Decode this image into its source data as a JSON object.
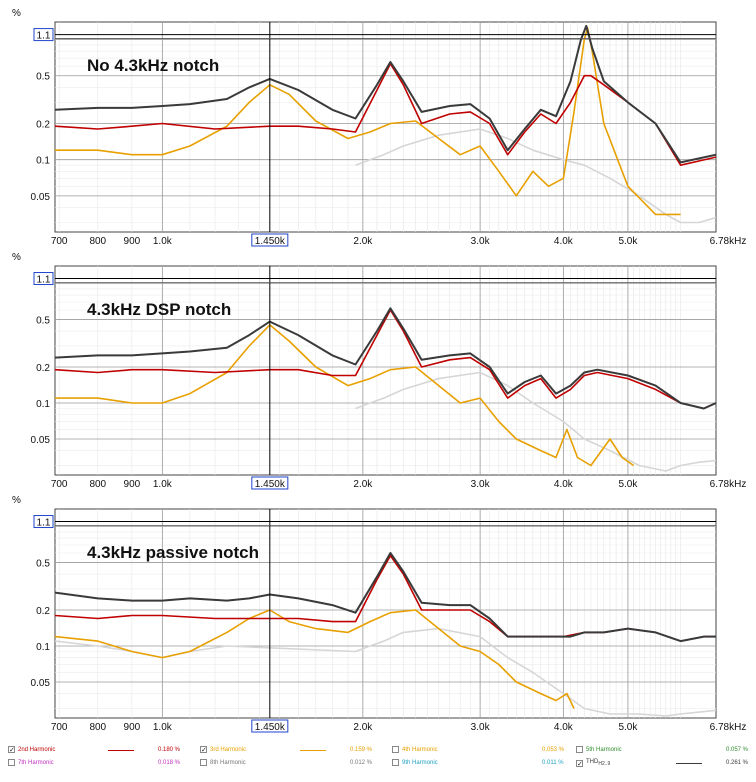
{
  "colors": {
    "thd": "#3a3a3a",
    "h2": "#c00000",
    "h3": "#e8a000",
    "h4_text": "#e8a000",
    "h5": "#2f8f2f",
    "h7": "#c030c0",
    "h9": "#20a0c0",
    "gray_curve": "#d6d6d6",
    "grid": "#9a9a9a",
    "cursor": "#000000",
    "box": "#2244cc"
  },
  "chart_data": [
    {
      "type": "line",
      "title": "No 4.3kHz notch",
      "ylabel": "%",
      "x_scale": "log",
      "y_scale": "log",
      "xlim": [
        690,
        6780
      ],
      "ylim": [
        0.025,
        1.4
      ],
      "x_tick_labels": [
        "700",
        "800",
        "900",
        "1.0k",
        "1.450k",
        "2.0k",
        "3.0k",
        "4.0k",
        "5.0k",
        "6.78kHz"
      ],
      "y_tick_labels": [
        "1.1",
        "0.5",
        "0.2",
        "0.1",
        "0.05"
      ],
      "cursor_x": 1450,
      "cursor_y": 1.1,
      "series": [
        {
          "name": "THD",
          "x": [
            690,
            800,
            900,
            1000,
            1100,
            1250,
            1350,
            1450,
            1600,
            1800,
            1950,
            2100,
            2200,
            2300,
            2450,
            2700,
            2900,
            3100,
            3300,
            3500,
            3700,
            3900,
            4100,
            4250,
            4330,
            4420,
            4600,
            5000,
            5500,
            6000,
            6780
          ],
          "y": [
            0.26,
            0.27,
            0.27,
            0.28,
            0.29,
            0.32,
            0.4,
            0.47,
            0.38,
            0.26,
            0.22,
            0.42,
            0.65,
            0.45,
            0.25,
            0.28,
            0.29,
            0.22,
            0.12,
            0.18,
            0.26,
            0.23,
            0.45,
            1.0,
            1.3,
            0.85,
            0.45,
            0.3,
            0.2,
            0.095,
            0.11
          ]
        },
        {
          "name": "2nd Harmonic",
          "x": [
            690,
            800,
            900,
            1000,
            1200,
            1450,
            1600,
            1800,
            1950,
            2100,
            2200,
            2300,
            2450,
            2700,
            2900,
            3100,
            3300,
            3500,
            3700,
            3900,
            4100,
            4300,
            4400,
            4600,
            5000,
            5500,
            6000,
            6780
          ],
          "y": [
            0.19,
            0.18,
            0.19,
            0.2,
            0.18,
            0.19,
            0.19,
            0.18,
            0.17,
            0.38,
            0.63,
            0.42,
            0.2,
            0.24,
            0.25,
            0.2,
            0.11,
            0.17,
            0.24,
            0.2,
            0.3,
            0.5,
            0.5,
            0.42,
            0.3,
            0.2,
            0.09,
            0.105
          ]
        },
        {
          "name": "3rd Harmonic",
          "x": [
            690,
            800,
            900,
            1000,
            1100,
            1250,
            1350,
            1450,
            1550,
            1700,
            1900,
            2050,
            2200,
            2400,
            2600,
            2800,
            3000,
            3200,
            3400,
            3600,
            3800,
            4000,
            4150,
            4300,
            4350,
            4420,
            4600,
            5000,
            5500,
            6000
          ],
          "y": [
            0.12,
            0.12,
            0.11,
            0.11,
            0.13,
            0.19,
            0.3,
            0.42,
            0.35,
            0.21,
            0.15,
            0.17,
            0.2,
            0.21,
            0.15,
            0.11,
            0.13,
            0.08,
            0.05,
            0.08,
            0.06,
            0.07,
            0.25,
            1.0,
            1.25,
            0.8,
            0.2,
            0.06,
            0.035,
            0.035
          ]
        },
        {
          "name": "",
          "x": [
            1950,
            2050,
            2150,
            2300,
            2600,
            3000,
            3300,
            3600,
            4000,
            4300,
            4700,
            5200,
            5700,
            6000,
            6400,
            6780
          ],
          "y": [
            0.09,
            0.1,
            0.11,
            0.13,
            0.16,
            0.18,
            0.15,
            0.12,
            0.1,
            0.09,
            0.07,
            0.05,
            0.035,
            0.03,
            0.03,
            0.033
          ]
        }
      ]
    },
    {
      "type": "line",
      "title": "4.3kHz DSP notch",
      "ylabel": "%",
      "x_scale": "log",
      "y_scale": "log",
      "xlim": [
        690,
        6780
      ],
      "ylim": [
        0.025,
        1.4
      ],
      "x_tick_labels": [
        "700",
        "800",
        "900",
        "1.0k",
        "1.450k",
        "2.0k",
        "3.0k",
        "4.0k",
        "5.0k",
        "6.78kHz"
      ],
      "y_tick_labels": [
        "1.1",
        "0.5",
        "0.2",
        "0.1",
        "0.05"
      ],
      "cursor_x": 1450,
      "cursor_y": 1.1,
      "series": [
        {
          "name": "THD",
          "x": [
            690,
            800,
            900,
            1000,
            1100,
            1250,
            1350,
            1450,
            1600,
            1800,
            1950,
            2100,
            2200,
            2300,
            2450,
            2700,
            2900,
            3100,
            3300,
            3500,
            3700,
            3900,
            4100,
            4300,
            4500,
            5000,
            5500,
            6000,
            6500,
            6780
          ],
          "y": [
            0.24,
            0.25,
            0.25,
            0.26,
            0.27,
            0.29,
            0.37,
            0.48,
            0.37,
            0.25,
            0.21,
            0.4,
            0.62,
            0.42,
            0.23,
            0.25,
            0.26,
            0.2,
            0.12,
            0.15,
            0.17,
            0.12,
            0.14,
            0.18,
            0.19,
            0.17,
            0.14,
            0.1,
            0.09,
            0.1
          ]
        },
        {
          "name": "2nd Harmonic",
          "x": [
            690,
            800,
            900,
            1000,
            1200,
            1450,
            1600,
            1800,
            1950,
            2100,
            2200,
            2300,
            2450,
            2700,
            2900,
            3100,
            3300,
            3500,
            3700,
            3900,
            4100,
            4300,
            4500,
            5000,
            5500,
            6000,
            6500,
            6780
          ],
          "y": [
            0.19,
            0.18,
            0.19,
            0.19,
            0.18,
            0.19,
            0.19,
            0.17,
            0.17,
            0.37,
            0.6,
            0.4,
            0.2,
            0.23,
            0.24,
            0.19,
            0.11,
            0.14,
            0.16,
            0.11,
            0.13,
            0.17,
            0.18,
            0.16,
            0.13,
            0.1,
            0.09,
            0.1
          ]
        },
        {
          "name": "3rd Harmonic",
          "x": [
            690,
            800,
            900,
            1000,
            1100,
            1250,
            1350,
            1450,
            1550,
            1700,
            1900,
            2050,
            2200,
            2400,
            2600,
            2800,
            3000,
            3200,
            3400,
            3700,
            3900,
            4050,
            4200,
            4400,
            4700,
            4900,
            5100
          ],
          "y": [
            0.11,
            0.11,
            0.1,
            0.1,
            0.12,
            0.18,
            0.3,
            0.45,
            0.33,
            0.2,
            0.14,
            0.16,
            0.19,
            0.2,
            0.14,
            0.1,
            0.11,
            0.07,
            0.05,
            0.04,
            0.035,
            0.06,
            0.035,
            0.03,
            0.05,
            0.035,
            0.03
          ]
        },
        {
          "name": "",
          "x": [
            1950,
            2050,
            2150,
            2300,
            2600,
            3000,
            3300,
            3600,
            4000,
            4300,
            4700,
            5200,
            5700,
            6000,
            6400,
            6780
          ],
          "y": [
            0.09,
            0.1,
            0.11,
            0.13,
            0.16,
            0.18,
            0.14,
            0.1,
            0.07,
            0.05,
            0.04,
            0.03,
            0.027,
            0.03,
            0.032,
            0.033
          ]
        }
      ]
    },
    {
      "type": "line",
      "title": "4.3kHz passive notch",
      "ylabel": "%",
      "x_scale": "log",
      "y_scale": "log",
      "xlim": [
        690,
        6780
      ],
      "ylim": [
        0.025,
        1.4
      ],
      "x_tick_labels": [
        "700",
        "800",
        "900",
        "1.0k",
        "1.450k",
        "2.0k",
        "3.0k",
        "4.0k",
        "5.0k",
        "6.78kHz"
      ],
      "y_tick_labels": [
        "1.1",
        "0.5",
        "0.2",
        "0.1",
        "0.05"
      ],
      "cursor_x": 1450,
      "cursor_y": 1.1,
      "series": [
        {
          "name": "THD",
          "x": [
            690,
            800,
            900,
            1000,
            1100,
            1250,
            1350,
            1450,
            1600,
            1800,
            1950,
            2100,
            2200,
            2300,
            2450,
            2700,
            2900,
            3100,
            3300,
            3500,
            3700,
            3900,
            4100,
            4300,
            4600,
            5000,
            5500,
            6000,
            6500,
            6780
          ],
          "y": [
            0.28,
            0.25,
            0.24,
            0.24,
            0.25,
            0.24,
            0.25,
            0.27,
            0.25,
            0.22,
            0.19,
            0.38,
            0.6,
            0.42,
            0.23,
            0.22,
            0.22,
            0.17,
            0.12,
            0.12,
            0.12,
            0.12,
            0.12,
            0.13,
            0.13,
            0.14,
            0.13,
            0.11,
            0.12,
            0.12
          ]
        },
        {
          "name": "2nd Harmonic",
          "x": [
            690,
            800,
            900,
            1000,
            1200,
            1450,
            1600,
            1800,
            1950,
            2100,
            2200,
            2300,
            2450,
            2700,
            2900,
            3100,
            3300,
            3600,
            4000,
            4300,
            4600,
            5000,
            5500,
            6000,
            6500,
            6780
          ],
          "y": [
            0.18,
            0.17,
            0.18,
            0.18,
            0.17,
            0.17,
            0.17,
            0.16,
            0.16,
            0.36,
            0.57,
            0.4,
            0.2,
            0.2,
            0.2,
            0.16,
            0.12,
            0.12,
            0.12,
            0.13,
            0.13,
            0.14,
            0.13,
            0.11,
            0.12,
            0.12
          ]
        },
        {
          "name": "3rd Harmonic",
          "x": [
            690,
            800,
            900,
            1000,
            1100,
            1250,
            1350,
            1450,
            1550,
            1700,
            1900,
            2050,
            2200,
            2400,
            2600,
            2800,
            3000,
            3200,
            3400,
            3700,
            3900,
            4050,
            4150
          ],
          "y": [
            0.12,
            0.11,
            0.09,
            0.08,
            0.09,
            0.13,
            0.17,
            0.2,
            0.16,
            0.14,
            0.13,
            0.16,
            0.19,
            0.2,
            0.14,
            0.1,
            0.09,
            0.07,
            0.05,
            0.04,
            0.035,
            0.04,
            0.03
          ]
        },
        {
          "name": "",
          "x": [
            690,
            800,
            900,
            1000,
            1100,
            1250,
            1950,
            2050,
            2150,
            2300,
            2600,
            3000,
            3300,
            3600,
            4000,
            4300,
            4700,
            5200,
            5700,
            6000,
            6400,
            6780
          ],
          "y": [
            0.11,
            0.1,
            0.09,
            0.08,
            0.09,
            0.1,
            0.09,
            0.1,
            0.11,
            0.13,
            0.14,
            0.12,
            0.08,
            0.06,
            0.04,
            0.03,
            0.027,
            0.027,
            0.026,
            0.027,
            0.028,
            0.029
          ]
        }
      ]
    }
  ],
  "legend": {
    "items": [
      {
        "key": "h2",
        "label": "2nd Harmonic",
        "checked": true,
        "value": "0.180 %",
        "line": true
      },
      {
        "key": "h3",
        "label": "3rd Harmonic",
        "checked": true,
        "value": "0.159 %",
        "line": true
      },
      {
        "key": "h4",
        "label": "4th Harmonic",
        "checked": false,
        "value": "0.053 %",
        "line": false
      },
      {
        "key": "h5",
        "label": "5th Harmonic",
        "checked": false,
        "value": "0.057 %",
        "line": false
      },
      {
        "key": "h7",
        "label": "7th Harmonic",
        "checked": false,
        "value": "0.018 %",
        "line": false
      },
      {
        "key": "h8",
        "label": "8th Harmonic",
        "checked": false,
        "value": "0.012 %",
        "line": false
      },
      {
        "key": "h9",
        "label": "9th Harmonic",
        "checked": false,
        "value": "0.011 %",
        "line": false
      },
      {
        "key": "thd",
        "label": "THD",
        "sub": "H2..9",
        "checked": true,
        "value": "0.261 %",
        "line": true
      }
    ]
  }
}
